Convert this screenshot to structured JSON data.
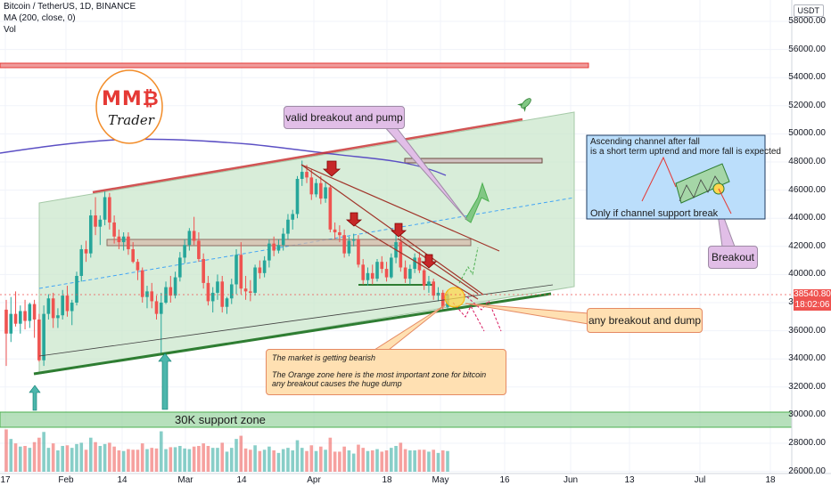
{
  "header": {
    "symbol": "Bitcoin / TetherUS, 1D, BINANCE",
    "indicator_ma": "MA (200, close, 0)",
    "indicator_vol": "Vol"
  },
  "currency_badge": "USDT",
  "logo": {
    "letters": "MM₿",
    "caption": "Trader"
  },
  "price_axis": [
    "58000.00",
    "56000.00",
    "54000.00",
    "52000.00",
    "50000.00",
    "48000.00",
    "46000.00",
    "44000.00",
    "42000.00",
    "40000.00",
    "38000.00",
    "36000.00",
    "34000.00",
    "32000.00",
    "30000.00",
    "28000.00",
    "26000.00"
  ],
  "time_axis": [
    "17",
    "Feb",
    "14",
    "Mar",
    "14",
    "Apr",
    "18",
    "May",
    "16",
    "Jun",
    "13",
    "Jul",
    "18"
  ],
  "current_price": {
    "price": "38540.80",
    "countdown": "18:02:06"
  },
  "annotations": {
    "valid_breakout": "valid breakout and pump",
    "inset_line1": "Ascending channel after fall",
    "inset_line2": "is a short term uptrend and more fall is expected",
    "inset_bottom": "Only if channel support break",
    "breakout_label": "Breakout",
    "dump_label": "any breakout and dump",
    "bearish_line1": "The market is getting bearish",
    "bearish_line2": "The Orange zone here is the most important zone for bitcoin",
    "bearish_line3": "any breakout causes the huge dump",
    "support_zone": "30K support zone"
  },
  "colors": {
    "up": "#26a69a",
    "down": "#ef5350",
    "channel_fill": "#c8e6c9",
    "ma": "#5b4fc4"
  },
  "chart_data": {
    "type": "candlestick",
    "title": "Bitcoin / TetherUS, 1D, BINANCE",
    "ylim": [
      26000,
      59000
    ],
    "candles_ohlc": [
      [
        37500,
        38200,
        33500,
        35800
      ],
      [
        35800,
        38400,
        35200,
        37200
      ],
      [
        37200,
        38800,
        36300,
        36500
      ],
      [
        36500,
        37800,
        35800,
        37400
      ],
      [
        37400,
        38200,
        36100,
        36700
      ],
      [
        36700,
        38000,
        36200,
        37900
      ],
      [
        37900,
        38200,
        35500,
        36800
      ],
      [
        36800,
        37200,
        33800,
        33900
      ],
      [
        33900,
        37800,
        33500,
        37200
      ],
      [
        37200,
        38600,
        36800,
        38300
      ],
      [
        38300,
        38700,
        36200,
        36900
      ],
      [
        36900,
        37600,
        36200,
        37100
      ],
      [
        37100,
        38900,
        36800,
        38500
      ],
      [
        38500,
        39200,
        37000,
        37400
      ],
      [
        37400,
        38200,
        36400,
        38000
      ],
      [
        38000,
        40200,
        37800,
        39900
      ],
      [
        39900,
        42100,
        39500,
        41800
      ],
      [
        41800,
        42400,
        40900,
        41500
      ],
      [
        41500,
        44600,
        41200,
        44200
      ],
      [
        44200,
        45500,
        42800,
        43400
      ],
      [
        43400,
        44200,
        42100,
        43900
      ],
      [
        43900,
        45900,
        43500,
        45500
      ],
      [
        45500,
        45800,
        43200,
        43700
      ],
      [
        43700,
        44200,
        42200,
        42700
      ],
      [
        42700,
        43200,
        41800,
        42300
      ],
      [
        42300,
        43000,
        41700,
        42700
      ],
      [
        42700,
        43000,
        41400,
        41800
      ],
      [
        41800,
        42300,
        40800,
        40900
      ],
      [
        40900,
        41100,
        39600,
        40300
      ],
      [
        40300,
        40500,
        38000,
        38400
      ],
      [
        38400,
        39200,
        37600,
        38800
      ],
      [
        38800,
        39400,
        37600,
        38100
      ],
      [
        38100,
        38500,
        36800,
        37200
      ],
      [
        37200,
        38700,
        34300,
        38000
      ],
      [
        38000,
        39500,
        37900,
        39100
      ],
      [
        39100,
        39900,
        38000,
        38500
      ],
      [
        38500,
        40200,
        38300,
        39800
      ],
      [
        39800,
        41600,
        39500,
        41200
      ],
      [
        41200,
        42500,
        40800,
        42100
      ],
      [
        42100,
        43300,
        41700,
        43100
      ],
      [
        43100,
        44100,
        42100,
        42400
      ],
      [
        42400,
        43000,
        40900,
        41100
      ],
      [
        41100,
        41500,
        39000,
        39400
      ],
      [
        39400,
        39900,
        37800,
        38100
      ],
      [
        38100,
        39100,
        37300,
        38700
      ],
      [
        38700,
        40000,
        38200,
        39500
      ],
      [
        39500,
        39900,
        37300,
        37700
      ],
      [
        37700,
        38400,
        37200,
        38300
      ],
      [
        38300,
        39700,
        37900,
        39300
      ],
      [
        39300,
        41800,
        38600,
        41400
      ],
      [
        41400,
        42300,
        38600,
        39000
      ],
      [
        39000,
        39900,
        38200,
        38800
      ],
      [
        38800,
        39600,
        38100,
        38700
      ],
      [
        38700,
        40700,
        38500,
        40500
      ],
      [
        40500,
        41000,
        39700,
        40100
      ],
      [
        40100,
        41300,
        39800,
        41000
      ],
      [
        41000,
        42500,
        40500,
        42200
      ],
      [
        42200,
        42700,
        41300,
        41700
      ],
      [
        41700,
        42500,
        41500,
        42100
      ],
      [
        42100,
        43300,
        41700,
        42900
      ],
      [
        42900,
        44300,
        42500,
        43900
      ],
      [
        43900,
        44600,
        43200,
        44300
      ],
      [
        44300,
        47000,
        44000,
        46800
      ],
      [
        46800,
        48100,
        46300,
        47300
      ],
      [
        47300,
        47800,
        46500,
        46900
      ],
      [
        46900,
        47500,
        45300,
        45700
      ],
      [
        45700,
        46800,
        45500,
        46500
      ],
      [
        46500,
        47000,
        45000,
        45400
      ],
      [
        45400,
        46600,
        45100,
        46200
      ],
      [
        46200,
        46400,
        43000,
        43200
      ],
      [
        43200,
        43700,
        42500,
        43000
      ],
      [
        43000,
        43500,
        42300,
        42800
      ],
      [
        42800,
        43200,
        41200,
        41500
      ],
      [
        41500,
        42700,
        41300,
        42400
      ],
      [
        42400,
        42900,
        42000,
        42500
      ],
      [
        42500,
        42800,
        40500,
        40700
      ],
      [
        40700,
        41100,
        39300,
        39600
      ],
      [
        39600,
        40500,
        39200,
        40100
      ],
      [
        40100,
        40700,
        39300,
        39700
      ],
      [
        39700,
        41100,
        39500,
        40900
      ],
      [
        40900,
        41300,
        40100,
        40400
      ],
      [
        40400,
        40900,
        39500,
        39800
      ],
      [
        39800,
        41500,
        39700,
        41200
      ],
      [
        41200,
        42900,
        40800,
        42300
      ],
      [
        42300,
        42800,
        40200,
        40500
      ],
      [
        40500,
        41000,
        39400,
        39700
      ],
      [
        39700,
        40700,
        39300,
        40400
      ],
      [
        40400,
        41500,
        40100,
        41200
      ],
      [
        41200,
        41600,
        40100,
        40300
      ],
      [
        40300,
        40400,
        38900,
        39200
      ],
      [
        39200,
        39900,
        38700,
        39500
      ],
      [
        39500,
        39700,
        38200,
        38500
      ],
      [
        38500,
        39100,
        38100,
        38700
      ],
      [
        38700,
        38900,
        37500,
        37700
      ],
      [
        37700,
        38900,
        37600,
        38600
      ]
    ],
    "ma200_label": "MA (200, close, 0)",
    "zones": [
      {
        "name": "30K support zone",
        "low": 29000,
        "high": 30100
      }
    ]
  }
}
